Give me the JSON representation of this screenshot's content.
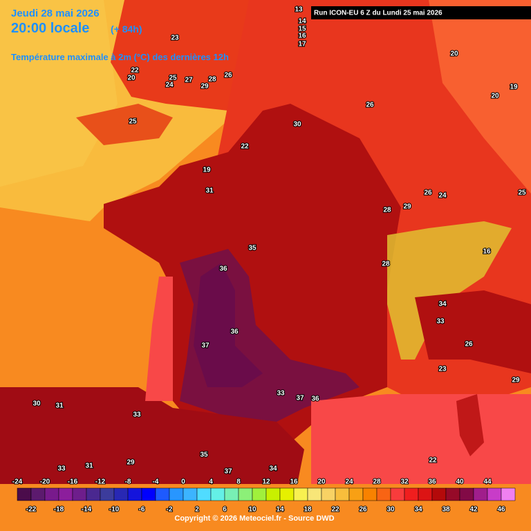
{
  "header": {
    "date": "Jeudi 28 mai 2026",
    "time": "20:00 locale",
    "lead": "(+ 84h)",
    "subtitle": "Température maximale à 2m (°C) des dernières 12h"
  },
  "run": "Run ICON-EU 6 Z du Lundi 25 mai 2026",
  "map_labels": [
    "13",
    "14",
    "15",
    "16",
    "17",
    "23",
    "22",
    "20",
    "25",
    "24",
    "27",
    "29",
    "28",
    "26",
    "25",
    "22",
    "19",
    "30",
    "26",
    "20",
    "20",
    "19",
    "31",
    "28",
    "29",
    "26",
    "24",
    "25",
    "35",
    "36",
    "28",
    "34",
    "33",
    "36",
    "37",
    "33",
    "37",
    "36",
    "30",
    "31",
    "33",
    "31",
    "33",
    "29",
    "35",
    "37",
    "34",
    "22",
    "26",
    "23",
    "29",
    "16"
  ],
  "legend": {
    "colors": [
      "#4b0c4b",
      "#5c1a6e",
      "#781a8c",
      "#8c1e9c",
      "#6e1e8c",
      "#4a2890",
      "#3c3c9c",
      "#2828b4",
      "#1414dc",
      "#0000ff",
      "#1e5aff",
      "#2896ff",
      "#3cb4ff",
      "#50dcff",
      "#64f0e6",
      "#78f0b4",
      "#8cf078",
      "#a0f03c",
      "#c8f000",
      "#e6f000",
      "#f8f050",
      "#f8e678",
      "#f8d264",
      "#f8be3c",
      "#f8a014",
      "#f88200",
      "#f86414",
      "#f83c3c",
      "#f01e1e",
      "#dc1414",
      "#b40a0a",
      "#960a28",
      "#820a46",
      "#a01e8c",
      "#c83cc8",
      "#f080f0"
    ],
    "top_labels": [
      -24,
      -20,
      -16,
      -12,
      -8,
      -4,
      0,
      4,
      8,
      12,
      16,
      20,
      24,
      28,
      32,
      36,
      40,
      44
    ],
    "bottom_labels": [
      -22,
      -18,
      -14,
      -10,
      -6,
      -2,
      2,
      6,
      10,
      14,
      18,
      22,
      26,
      30,
      34,
      38,
      42,
      46
    ]
  },
  "copyright": "Copyright © 2026 Meteociel.fr - Source DWD"
}
